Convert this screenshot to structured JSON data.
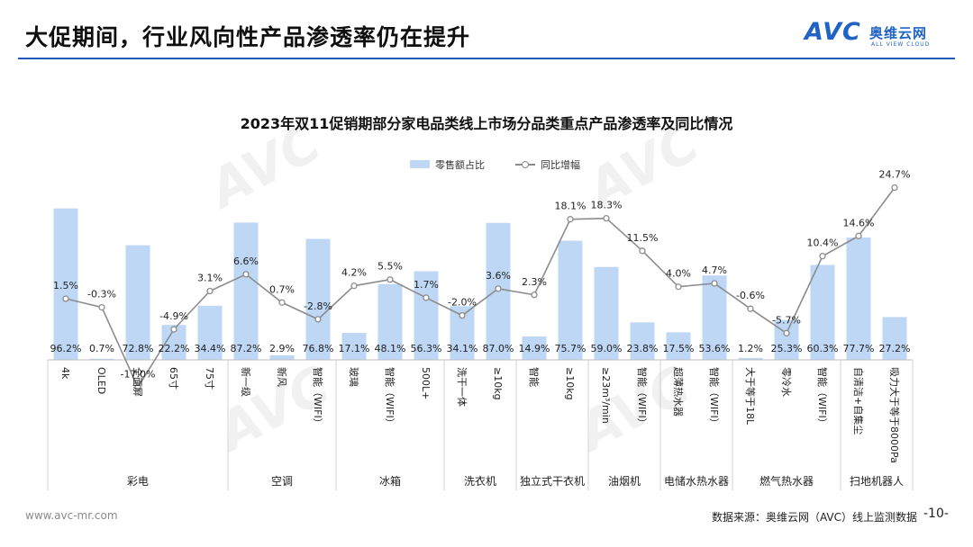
{
  "header": {
    "title": "大促期间，行业风向性产品渗透率仍在提升",
    "logo_mark": "AVC",
    "logo_cn": "奥维云网",
    "logo_en": "ALL VIEW CLOUD"
  },
  "footer": {
    "website": "www.avc-mr.com",
    "source": "数据来源：奥维云网（AVC）线上监测数据",
    "page": "-10-"
  },
  "colors": {
    "bar": "#bdd7f5",
    "line": "#8c8c8c",
    "accent": "#1e5bb8"
  },
  "chart_data": {
    "type": "bar+line",
    "title": "2023年双11促销期部分家电品类线上市场分品类重点产品渗透率及同比情况",
    "legend": [
      "零售额占比",
      "同比增幅"
    ],
    "legend_position": "top",
    "categories": [
      "4k",
      "OLED",
      "全面屏",
      "65寸",
      "75寸",
      "新一级",
      "新风",
      "智能（WIFI）",
      "玻璃",
      "智能（WIFI）",
      "500L+",
      "洗干一体",
      "≥10kg",
      "智能",
      "≥10kg",
      "≥23m³/min",
      "智能（WIFI）",
      "超薄热水器",
      "智能（WIFI）",
      "大于等于18L",
      "零冷水",
      "智能（WIFI）",
      "自清洁+自集尘",
      "吸力大于等于8000Pa"
    ],
    "category_labels": [
      "4k",
      "OLED",
      "全面屏",
      "65寸",
      "75寸",
      "新一级",
      "新风",
      "智能（WIFI）",
      "玻璃",
      "智能（WIFI）",
      "500L+",
      "洗干一体",
      "≥10kg",
      "智能",
      "≥10kg",
      "≥23m³/min",
      "智能（WIFI）",
      "超薄热水器",
      "智能（WIFI）",
      "大于等于18L",
      "零冷水",
      "智能（WIFI）",
      "自清洁+自集尘",
      "吸力大于等于8000Pa"
    ],
    "groups": [
      {
        "name": "彩电",
        "count": 5
      },
      {
        "name": "空调",
        "count": 3
      },
      {
        "name": "冰箱",
        "count": 3
      },
      {
        "name": "洗衣机",
        "count": 2
      },
      {
        "name": "独立式干衣机",
        "count": 2
      },
      {
        "name": "油烟机",
        "count": 2
      },
      {
        "name": "电储水热水器",
        "count": 2
      },
      {
        "name": "燃气热水器",
        "count": 3
      },
      {
        "name": "扫地机器人",
        "count": 2
      }
    ],
    "series": [
      {
        "name": "零售额占比",
        "type": "bar",
        "values": [
          96.2,
          0.7,
          72.8,
          22.2,
          34.4,
          87.2,
          2.9,
          76.8,
          17.1,
          48.1,
          56.3,
          34.1,
          87.0,
          14.9,
          75.7,
          59.0,
          23.8,
          17.5,
          53.6,
          1.2,
          25.3,
          60.3,
          77.7,
          27.2
        ],
        "labels": [
          "96.2%",
          "0.7%",
          "72.8%",
          "22.2%",
          "34.4%",
          "87.2%",
          "2.9%",
          "76.8%",
          "17.1%",
          "48.1%",
          "56.3%",
          "34.1%",
          "87.0%",
          "14.9%",
          "75.7%",
          "59.0%",
          "23.8%",
          "17.5%",
          "53.6%",
          "1.2%",
          "25.3%",
          "60.3%",
          "77.7%",
          "27.2%"
        ]
      },
      {
        "name": "同比增幅",
        "type": "line",
        "values": [
          1.5,
          -0.3,
          -17.0,
          -4.9,
          3.1,
          6.6,
          0.7,
          -2.8,
          4.2,
          5.5,
          1.7,
          -2.0,
          3.6,
          2.3,
          18.1,
          18.3,
          11.5,
          4.0,
          4.7,
          -0.6,
          -5.7,
          10.4,
          14.6,
          24.7
        ],
        "labels": [
          "1.5%",
          "-0.3%",
          "-17.0%",
          "-4.9%",
          "3.1%",
          "6.6%",
          "0.7%",
          "-2.8%",
          "4.2%",
          "5.5%",
          "1.7%",
          "-2.0%",
          "3.6%",
          "2.3%",
          "18.1%",
          "18.3%",
          "11.5%",
          "4.0%",
          "4.7%",
          "-0.6%",
          "-5.7%",
          "10.4%",
          "14.6%",
          "24.7%"
        ]
      }
    ]
  }
}
